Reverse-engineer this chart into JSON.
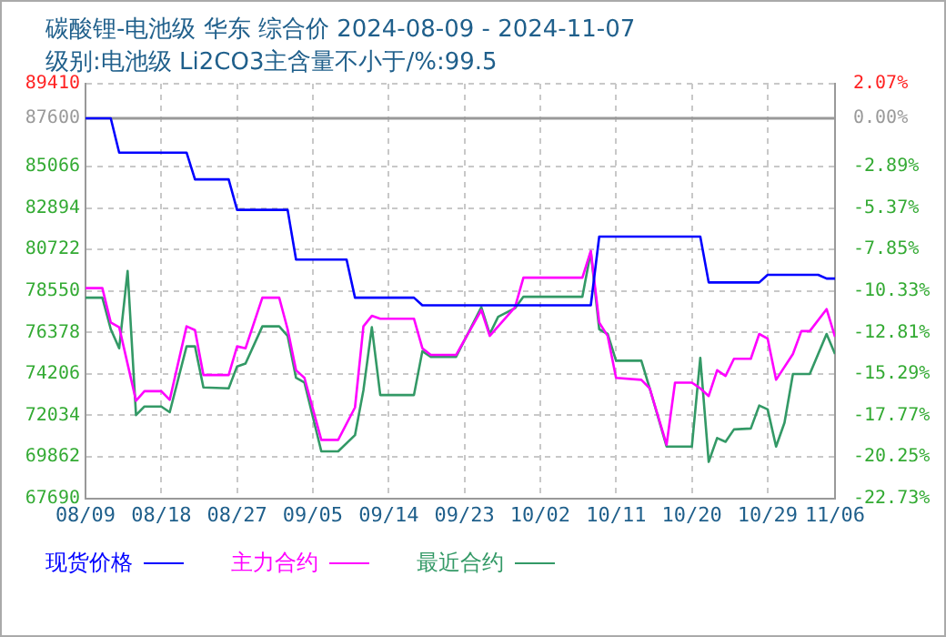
{
  "chart_data": {
    "type": "line",
    "title": "碳酸锂-电池级 华东 综合价 2024-08-09 - 2024-11-07",
    "subtitle": "级别:电池级 Li2CO3主含量不小于/%:99.5",
    "xlim": [
      "2024-08-09",
      "2024-11-06"
    ],
    "xticks": [
      {
        "value": "2024-08-09",
        "label": "08/09"
      },
      {
        "value": "2024-08-18",
        "label": "08/18"
      },
      {
        "value": "2024-08-27",
        "label": "08/27"
      },
      {
        "value": "2024-09-05",
        "label": "09/05"
      },
      {
        "value": "2024-09-14",
        "label": "09/14"
      },
      {
        "value": "2024-09-23",
        "label": "09/23"
      },
      {
        "value": "2024-10-02",
        "label": "10/02"
      },
      {
        "value": "2024-10-11",
        "label": "10/11"
      },
      {
        "value": "2024-10-20",
        "label": "10/20"
      },
      {
        "value": "2024-10-29",
        "label": "10/29"
      },
      {
        "value": "2024-11-06",
        "label": "11/06"
      }
    ],
    "ylim": [
      67690,
      89410
    ],
    "yticks": [
      67690,
      69862,
      72034,
      74206,
      76378,
      78550,
      80722,
      82894,
      85066,
      87600,
      89410
    ],
    "y2lim": [
      -22.73,
      2.07
    ],
    "y2ticks": [
      {
        "value": -22.73,
        "label": "-22.73%"
      },
      {
        "value": -20.25,
        "label": "-20.25%"
      },
      {
        "value": -17.77,
        "label": "-17.77%"
      },
      {
        "value": -15.29,
        "label": "-15.29%"
      },
      {
        "value": -12.81,
        "label": "-12.81%"
      },
      {
        "value": -10.33,
        "label": "-10.33%"
      },
      {
        "value": -7.85,
        "label": "-7.85%"
      },
      {
        "value": -5.37,
        "label": "-5.37%"
      },
      {
        "value": -2.89,
        "label": "-2.89%"
      },
      {
        "value": 0,
        "label": "0.00%"
      },
      {
        "value": 2.07,
        "label": "2.07%"
      }
    ],
    "ref_lines": [
      {
        "axis": "y",
        "value": 87600,
        "color": "#999999"
      }
    ],
    "grid": true,
    "legend": "bottom",
    "marker": "none",
    "line_style": "solid",
    "series": [
      {
        "name": "现货价格",
        "color": "#0000ff",
        "x": [
          "2024-08-09",
          "2024-08-12",
          "2024-08-13",
          "2024-08-21",
          "2024-08-22",
          "2024-08-26",
          "2024-08-27",
          "2024-09-02",
          "2024-09-03",
          "2024-09-09",
          "2024-09-10",
          "2024-09-17",
          "2024-09-18",
          "2024-10-08",
          "2024-10-09",
          "2024-10-21",
          "2024-10-22",
          "2024-10-28",
          "2024-10-29",
          "2024-11-04",
          "2024-11-05",
          "2024-11-06"
        ],
        "values": [
          87600,
          87600,
          85800,
          85800,
          84400,
          84400,
          82800,
          82800,
          80200,
          80200,
          78200,
          78200,
          77800,
          77800,
          81400,
          81400,
          79000,
          79000,
          79400,
          79400,
          79200,
          79200
        ]
      },
      {
        "name": "主力合约",
        "color": "#ff00ff",
        "x": [
          "2024-08-09",
          "2024-08-11",
          "2024-08-12",
          "2024-08-13",
          "2024-08-15",
          "2024-08-16",
          "2024-08-18",
          "2024-08-19",
          "2024-08-21",
          "2024-08-22",
          "2024-08-23",
          "2024-08-26",
          "2024-08-27",
          "2024-08-28",
          "2024-08-30",
          "2024-09-01",
          "2024-09-02",
          "2024-09-03",
          "2024-09-04",
          "2024-09-06",
          "2024-09-08",
          "2024-09-10",
          "2024-09-11",
          "2024-09-12",
          "2024-09-13",
          "2024-09-17",
          "2024-09-18",
          "2024-09-19",
          "2024-09-22",
          "2024-09-25",
          "2024-09-26",
          "2024-09-29",
          "2024-09-30",
          "2024-10-07",
          "2024-10-08",
          "2024-10-09",
          "2024-10-10",
          "2024-10-11",
          "2024-10-14",
          "2024-10-15",
          "2024-10-17",
          "2024-10-18",
          "2024-10-20",
          "2024-10-21",
          "2024-10-22",
          "2024-10-23",
          "2024-10-24",
          "2024-10-25",
          "2024-10-27",
          "2024-10-28",
          "2024-10-29",
          "2024-10-30",
          "2024-11-01",
          "2024-11-02",
          "2024-11-03",
          "2024-11-05",
          "2024-11-06"
        ],
        "values": [
          78700,
          78700,
          76900,
          76650,
          72800,
          73300,
          73300,
          72850,
          76700,
          76500,
          74150,
          74150,
          75650,
          75550,
          78200,
          78200,
          76550,
          74400,
          74000,
          70750,
          70750,
          72450,
          76700,
          77250,
          77100,
          77100,
          75550,
          75200,
          75200,
          77550,
          76200,
          77700,
          79250,
          79250,
          80650,
          76900,
          76200,
          74000,
          73900,
          73450,
          70500,
          73750,
          73750,
          73450,
          73050,
          74400,
          74100,
          75000,
          75000,
          76300,
          76050,
          73900,
          75250,
          76450,
          76450,
          77600,
          76150
        ]
      },
      {
        "name": "最近合约",
        "color": "#339966",
        "x": [
          "2024-08-09",
          "2024-08-11",
          "2024-08-12",
          "2024-08-13",
          "2024-08-14",
          "2024-08-15",
          "2024-08-16",
          "2024-08-18",
          "2024-08-19",
          "2024-08-21",
          "2024-08-22",
          "2024-08-23",
          "2024-08-26",
          "2024-08-27",
          "2024-08-28",
          "2024-08-30",
          "2024-09-01",
          "2024-09-02",
          "2024-09-03",
          "2024-09-04",
          "2024-09-06",
          "2024-09-08",
          "2024-09-10",
          "2024-09-11",
          "2024-09-12",
          "2024-09-13",
          "2024-09-17",
          "2024-09-18",
          "2024-09-19",
          "2024-09-22",
          "2024-09-25",
          "2024-09-26",
          "2024-09-27",
          "2024-09-29",
          "2024-09-30",
          "2024-10-07",
          "2024-10-08",
          "2024-10-09",
          "2024-10-10",
          "2024-10-11",
          "2024-10-14",
          "2024-10-15",
          "2024-10-17",
          "2024-10-20",
          "2024-10-21",
          "2024-10-22",
          "2024-10-23",
          "2024-10-24",
          "2024-10-25",
          "2024-10-27",
          "2024-10-28",
          "2024-10-29",
          "2024-10-30",
          "2024-10-31",
          "2024-11-01",
          "2024-11-03",
          "2024-11-05",
          "2024-11-06"
        ],
        "values": [
          78200,
          78200,
          76550,
          75550,
          79600,
          72050,
          72500,
          72500,
          72200,
          75650,
          75650,
          73500,
          73450,
          74600,
          74750,
          76700,
          76700,
          76200,
          74000,
          73750,
          70150,
          70150,
          71000,
          73350,
          76650,
          73100,
          73100,
          75400,
          75100,
          75100,
          77700,
          76300,
          77200,
          77650,
          78250,
          78250,
          80600,
          76550,
          76300,
          74900,
          74900,
          73450,
          70400,
          70400,
          75050,
          69600,
          70850,
          70650,
          71300,
          71350,
          72550,
          72350,
          70400,
          71650,
          74200,
          74200,
          76300,
          75250
        ]
      }
    ]
  }
}
